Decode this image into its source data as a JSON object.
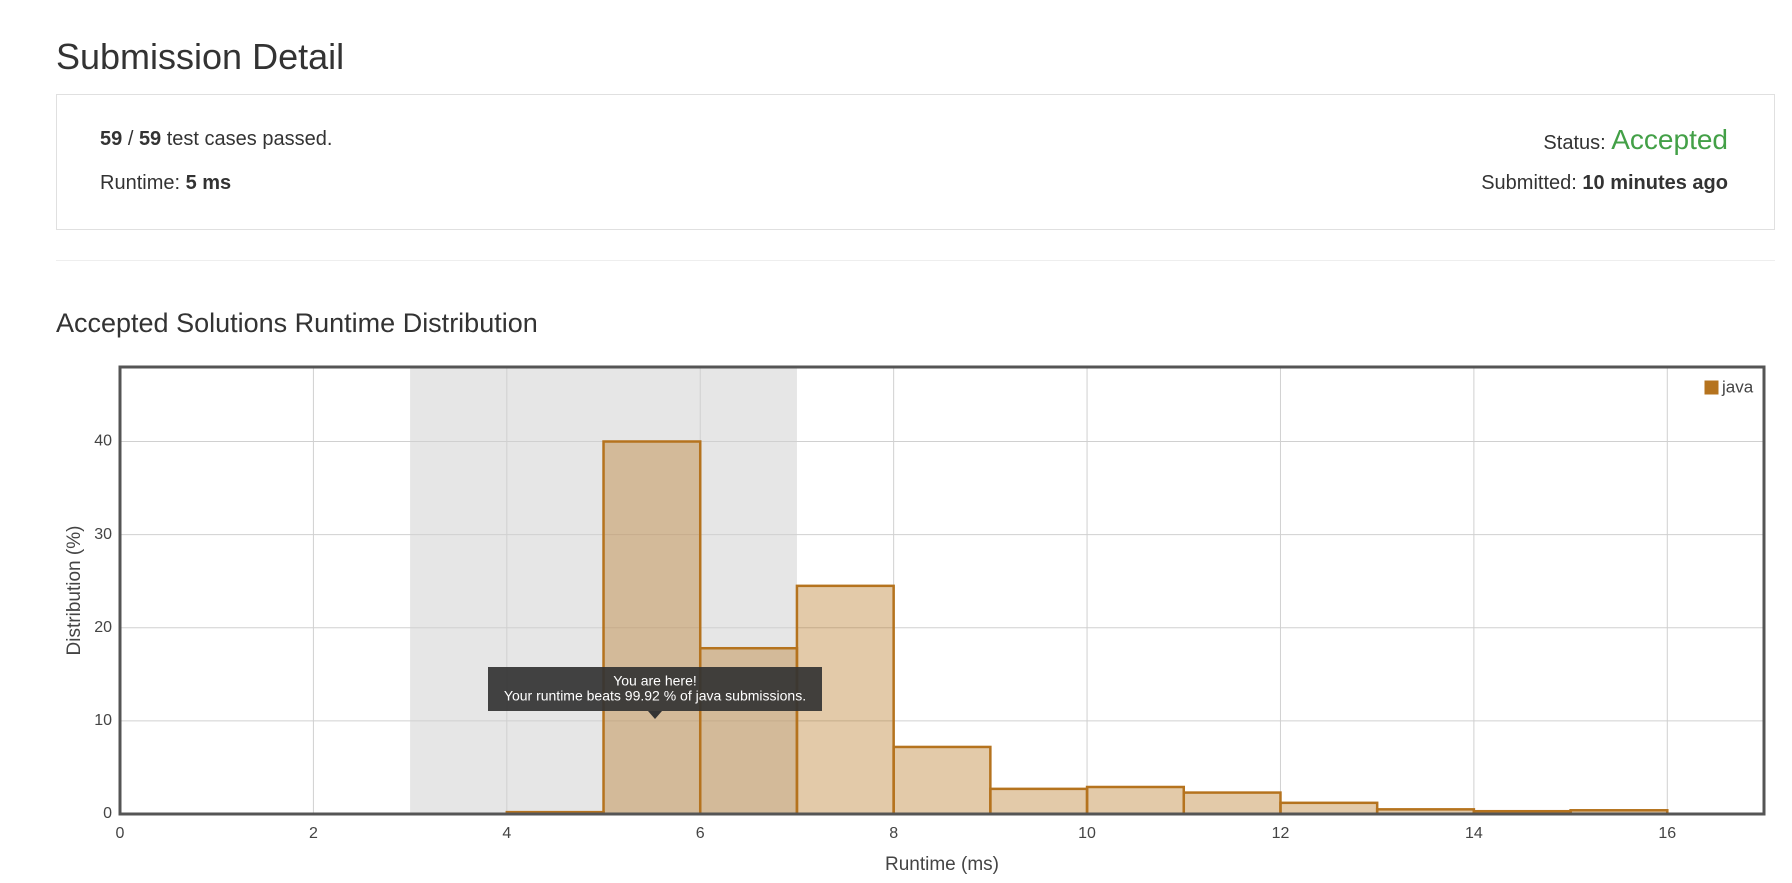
{
  "header": {
    "title": "Submission Detail"
  },
  "summary": {
    "passed": "59",
    "separator": "/",
    "total": "59",
    "suffix": "test cases passed.",
    "runtime_label": "Runtime:",
    "runtime_value": "5 ms",
    "status_label": "Status:",
    "status_value": "Accepted",
    "submitted_label": "Submitted:",
    "submitted_value": "10 minutes ago"
  },
  "section": {
    "title": "Accepted Solutions Runtime Distribution"
  },
  "chart_data": {
    "type": "histogram",
    "xlabel": "Runtime (ms)",
    "ylabel": "Distribution (%)",
    "bins": [
      4,
      5,
      6,
      7,
      8,
      9,
      10,
      11,
      12,
      13,
      14,
      15,
      16
    ],
    "series": [
      {
        "name": "java",
        "color": "#b5731e",
        "values": [
          0.2,
          40,
          17.8,
          24.5,
          7.2,
          2.7,
          2.9,
          2.3,
          1.2,
          0.5,
          0.3,
          0.4
        ]
      }
    ],
    "xlim": [
      0,
      17
    ],
    "ylim": [
      0,
      48
    ],
    "xticks": [
      0,
      2,
      4,
      6,
      8,
      10,
      12,
      14,
      16
    ],
    "yticks": [
      0,
      10,
      20,
      30,
      40
    ],
    "grid": true,
    "legend": "upper right",
    "highlight_range": [
      3,
      7
    ],
    "annotation": {
      "title": "You are here!",
      "text": "Your runtime beats 99.92 % of java submissions."
    }
  }
}
